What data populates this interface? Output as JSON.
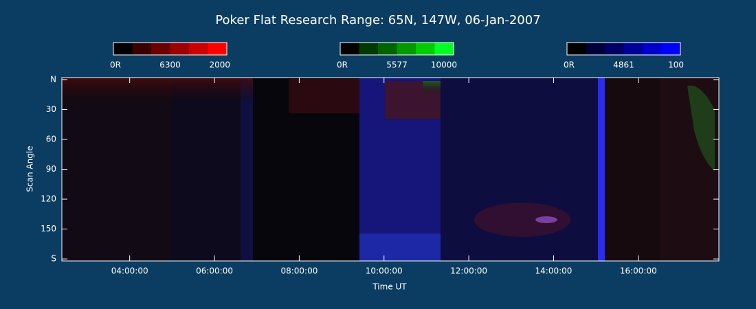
{
  "chart_data": {
    "type": "keogram",
    "title": "Poker Flat Research Range: 65N, 147W, 06-Jan-2007",
    "xlabel": "Time UT",
    "ylabel": "Scan Angle",
    "xlim": [
      2.4,
      17.9
    ],
    "xticks": [
      {
        "value": 4,
        "label": "04:00:00"
      },
      {
        "value": 6,
        "label": "06:00:00"
      },
      {
        "value": 8,
        "label": "08:00:00"
      },
      {
        "value": 10,
        "label": "10:00:00"
      },
      {
        "value": 12,
        "label": "12:00:00"
      },
      {
        "value": 14,
        "label": "14:00:00"
      },
      {
        "value": 16,
        "label": "16:00:00"
      }
    ],
    "ylim": [
      182,
      -2
    ],
    "yticks": [
      {
        "value": 0,
        "label": "N"
      },
      30,
      60,
      90,
      120,
      150,
      {
        "value": 180,
        "label": "S"
      }
    ],
    "colorbars": [
      {
        "min_label": "0R",
        "name": "6300",
        "max": 2000,
        "colors": [
          "#000000",
          "#3a0000",
          "#6b0000",
          "#9c0000",
          "#cc0000",
          "#ff0000"
        ]
      },
      {
        "min_label": "0R",
        "name": "5577",
        "max": 10000,
        "colors": [
          "#000000",
          "#003a00",
          "#006400",
          "#009a00",
          "#00cc00",
          "#00ff22"
        ]
      },
      {
        "min_label": "0R",
        "name": "4861",
        "max": 100,
        "colors": [
          "#000000",
          "#00003a",
          "#000066",
          "#000099",
          "#0000cc",
          "#0000ff"
        ]
      }
    ]
  }
}
